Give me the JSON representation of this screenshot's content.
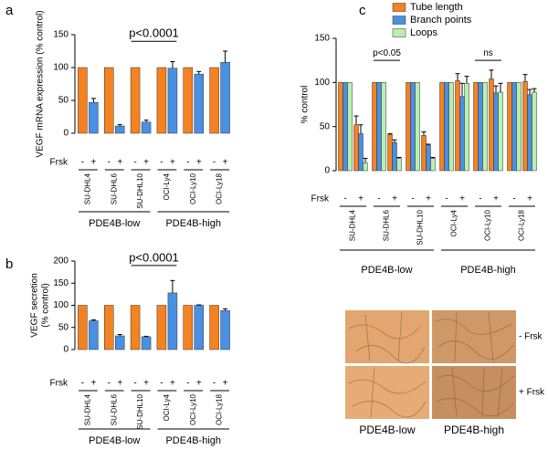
{
  "chart_data": [
    {
      "type": "bar",
      "panel_label": "a",
      "ylabel": [
        "VEGF mRNA expression (% control)"
      ],
      "ylim": [
        0,
        150
      ],
      "yticks": [
        0,
        50,
        100,
        150
      ],
      "condition_label": "Frsk",
      "categories": [
        "-",
        "+",
        "-",
        "+",
        "-",
        "+",
        "-",
        "+",
        "-",
        "+",
        "-",
        "+"
      ],
      "cell_lines": [
        "SU-DHL4",
        "SU-DHL6",
        "SU-DHL10",
        "OCI-Ly4",
        "OCI-Ly10",
        "OCI-Ly18"
      ],
      "groups": [
        "PDE4B-low",
        "PDE4B-high"
      ],
      "colors": [
        "#f58220",
        "#4a90e2"
      ],
      "values": [
        100,
        47,
        100,
        11,
        100,
        17,
        100,
        99,
        100,
        90,
        100,
        108
      ],
      "errors": [
        null,
        6,
        null,
        2,
        null,
        3,
        null,
        10,
        null,
        4,
        null,
        17
      ],
      "annotations": [
        "p<0.0001"
      ]
    },
    {
      "type": "bar",
      "panel_label": "b",
      "ylabel": [
        "VEGF secretion",
        "(% control)"
      ],
      "ylim": [
        0,
        200
      ],
      "yticks": [
        0,
        50,
        100,
        150,
        200
      ],
      "condition_label": "Frsk",
      "categories": [
        "-",
        "+",
        "-",
        "+",
        "-",
        "+",
        "-",
        "+",
        "-",
        "+",
        "-",
        "+"
      ],
      "cell_lines": [
        "SU-DHL4",
        "SU-DHL6",
        "SU-DHL10",
        "OCI-Ly4",
        "OCI-Ly10",
        "OCI-Ly18"
      ],
      "groups": [
        "PDE4B-low",
        "PDE4B-high"
      ],
      "colors": [
        "#f58220",
        "#4a90e2"
      ],
      "values": [
        100,
        65,
        100,
        31,
        100,
        29,
        100,
        128,
        100,
        100,
        100,
        88
      ],
      "errors": [
        null,
        2,
        null,
        3,
        null,
        1,
        null,
        28,
        null,
        1,
        null,
        4
      ],
      "annotations": [
        "p<0.0001"
      ]
    },
    {
      "type": "grouped_bar",
      "panel_label": "c",
      "ylabel": [
        "% control"
      ],
      "ylim": [
        0,
        150
      ],
      "yticks": [
        0,
        50,
        100,
        150
      ],
      "condition_label": "Frsk",
      "categories": [
        "-",
        "+",
        "-",
        "+",
        "-",
        "+",
        "-",
        "+",
        "-",
        "+",
        "-",
        "+"
      ],
      "cell_lines": [
        "SU-DHL4",
        "SU-DHL6",
        "SU-DHL10",
        "OCI-Ly4",
        "OCI-Ly10",
        "OCI-Ly18"
      ],
      "groups": [
        "PDE4B-low",
        "PDE4B-high"
      ],
      "series": [
        {
          "name": "Tube length",
          "color": "#f58220",
          "values": [
            100,
            52,
            100,
            41,
            100,
            40,
            100,
            102,
            100,
            104,
            100,
            101
          ],
          "errors": [
            null,
            10,
            null,
            1,
            null,
            4,
            null,
            8,
            null,
            10,
            null,
            8
          ]
        },
        {
          "name": "Branch points",
          "color": "#4a90e2",
          "values": [
            100,
            42,
            100,
            32,
            100,
            29,
            100,
            84,
            100,
            88,
            100,
            86
          ],
          "errors": [
            null,
            10,
            null,
            3,
            null,
            1,
            null,
            15,
            null,
            8,
            null,
            6
          ]
        },
        {
          "name": "Loops",
          "color": "#b8f0b0",
          "values": [
            100,
            9,
            100,
            14,
            100,
            14,
            100,
            99,
            100,
            89,
            100,
            89
          ],
          "errors": [
            null,
            5,
            null,
            1,
            null,
            1,
            null,
            8,
            null,
            10,
            null,
            4
          ]
        }
      ],
      "annotations": [
        "p<0.05",
        "ns"
      ]
    }
  ],
  "micrographs": {
    "rows": [
      "- Frsk",
      "+ Frsk"
    ],
    "columns": [
      "PDE4B-low",
      "PDE4B-high"
    ]
  }
}
